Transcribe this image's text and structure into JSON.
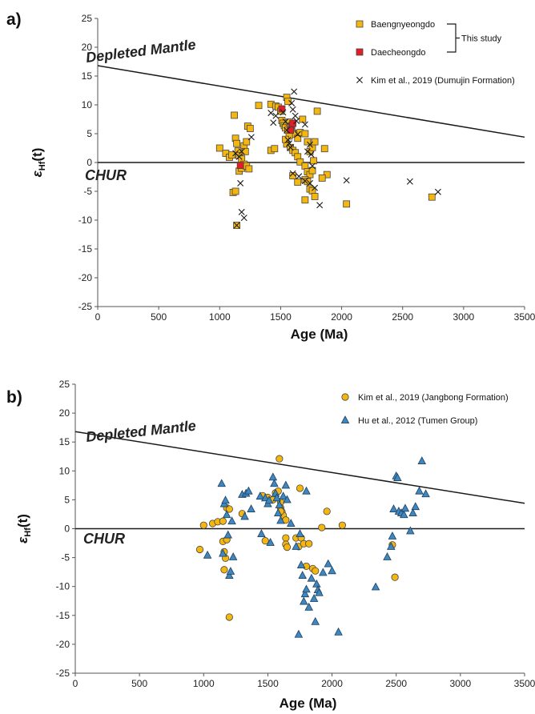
{
  "colors": {
    "baengnyeongdo": "#f5b70f",
    "daecheongdo": "#e21d26",
    "kim_jangbong": "#f5b70f",
    "hu_tumen": "#3f87bf",
    "marker_stroke": "#444444",
    "line": "#1a1a1a"
  },
  "chart_data": [
    {
      "type": "scatter",
      "panel_label": "a)",
      "xlabel": "Age (Ma)",
      "ylabel": "ε",
      "ylabel_sub": "Hf",
      "ylabel_suffix": "(t)",
      "xlim": [
        0,
        3500
      ],
      "ylim": [
        -25,
        25
      ],
      "xticks": [
        "0",
        "500",
        "1000",
        "1500",
        "2000",
        "2500",
        "3000",
        "3500"
      ],
      "yticks": [
        "25",
        "20",
        "15",
        "10",
        "5",
        "0",
        "-5",
        "-10",
        "-15",
        "-20",
        "-25"
      ],
      "reference_lines": [
        {
          "label": "Depleted Mantle",
          "points": [
            [
              0,
              16.8
            ],
            [
              3500,
              4.4
            ]
          ]
        },
        {
          "label": "CHUR",
          "points": [
            [
              0,
              0
            ],
            [
              3500,
              0
            ]
          ]
        }
      ],
      "legend_position": "top-right",
      "legend_bracket_label": "This study",
      "series": [
        {
          "name": "Baengnyeongdo",
          "marker": "square",
          "color_key": "baengnyeongdo",
          "points": [
            [
              1000,
              2.5
            ],
            [
              1050,
              1.6
            ],
            [
              1080,
              0.9
            ],
            [
              1100,
              1.3
            ],
            [
              1120,
              8.2
            ],
            [
              1130,
              4.2
            ],
            [
              1140,
              3.3
            ],
            [
              1150,
              2.0
            ],
            [
              1160,
              1.2
            ],
            [
              1180,
              0.6
            ],
            [
              1200,
              2.9
            ],
            [
              1210,
              1.9
            ],
            [
              1220,
              3.6
            ],
            [
              1230,
              6.3
            ],
            [
              1250,
              5.9
            ],
            [
              1110,
              -5.2
            ],
            [
              1130,
              -5.0
            ],
            [
              1140,
              -10.9
            ],
            [
              1160,
              -1.5
            ],
            [
              1180,
              -1.0
            ],
            [
              1200,
              -0.3
            ],
            [
              1220,
              -0.6
            ],
            [
              1240,
              -1.1
            ],
            [
              1320,
              9.9
            ],
            [
              1420,
              10.1
            ],
            [
              1460,
              9.8
            ],
            [
              1480,
              9.6
            ],
            [
              1500,
              8.9
            ],
            [
              1510,
              7.3
            ],
            [
              1520,
              6.8
            ],
            [
              1530,
              6.4
            ],
            [
              1540,
              6.0
            ],
            [
              1550,
              11.3
            ],
            [
              1560,
              10.6
            ],
            [
              1570,
              7.0
            ],
            [
              1580,
              6.2
            ],
            [
              1590,
              5.6
            ],
            [
              1600,
              5.1
            ],
            [
              1620,
              4.9
            ],
            [
              1640,
              4.2
            ],
            [
              1660,
              5.2
            ],
            [
              1680,
              7.5
            ],
            [
              1700,
              5.0
            ],
            [
              1720,
              3.6
            ],
            [
              1740,
              1.9
            ],
            [
              1760,
              2.6
            ],
            [
              1780,
              3.6
            ],
            [
              1800,
              8.9
            ],
            [
              1420,
              2.1
            ],
            [
              1450,
              2.4
            ],
            [
              1550,
              3.2
            ],
            [
              1580,
              2.6
            ],
            [
              1600,
              2.1
            ],
            [
              1620,
              1.7
            ],
            [
              1640,
              1.0
            ],
            [
              1660,
              0.1
            ],
            [
              1700,
              -0.6
            ],
            [
              1720,
              -1.6
            ],
            [
              1740,
              -2.1
            ],
            [
              1760,
              -1.4
            ],
            [
              1600,
              -2.3
            ],
            [
              1640,
              -3.4
            ],
            [
              1700,
              -3.0
            ],
            [
              1720,
              -3.3
            ],
            [
              1740,
              -4.6
            ],
            [
              1760,
              -4.9
            ],
            [
              1780,
              -5.9
            ],
            [
              1880,
              -2.1
            ],
            [
              1700,
              -6.5
            ],
            [
              1860,
              2.4
            ],
            [
              1840,
              -2.7
            ],
            [
              1770,
              0.3
            ],
            [
              2040,
              -7.2
            ],
            [
              2740,
              -6.0
            ],
            [
              1560,
              5.6
            ],
            [
              1570,
              4.6
            ],
            [
              1540,
              4.0
            ]
          ]
        },
        {
          "name": "Daecheongdo",
          "marker": "square",
          "color_key": "daecheongdo",
          "points": [
            [
              1170,
              -0.5
            ],
            [
              1510,
              9.3
            ],
            [
              1590,
              6.4
            ],
            [
              1600,
              6.8
            ],
            [
              1580,
              5.6
            ]
          ]
        },
        {
          "name": "Kim et al., 2019 (Dumujin Formation)",
          "marker": "x",
          "color_key": "line",
          "points": [
            [
              1130,
              1.6
            ],
            [
              1160,
              1.0
            ],
            [
              1180,
              1.9
            ],
            [
              1260,
              4.4
            ],
            [
              1170,
              -3.6
            ],
            [
              1180,
              -8.6
            ],
            [
              1200,
              -9.6
            ],
            [
              1140,
              -10.9
            ],
            [
              1420,
              8.6
            ],
            [
              1460,
              8.1
            ],
            [
              1440,
              6.9
            ],
            [
              1520,
              8.7
            ],
            [
              1540,
              7.1
            ],
            [
              1550,
              5.6
            ],
            [
              1560,
              3.9
            ],
            [
              1570,
              3.3
            ],
            [
              1580,
              2.6
            ],
            [
              1590,
              10.3
            ],
            [
              1600,
              9.2
            ],
            [
              1610,
              12.3
            ],
            [
              1620,
              8.1
            ],
            [
              1630,
              7.2
            ],
            [
              1640,
              4.9
            ],
            [
              1700,
              6.6
            ],
            [
              1740,
              3.1
            ],
            [
              1750,
              1.4
            ],
            [
              1760,
              -0.6
            ],
            [
              1600,
              -1.9
            ],
            [
              1650,
              -2.4
            ],
            [
              1700,
              -3.2
            ],
            [
              1740,
              -3.6
            ],
            [
              1780,
              -4.4
            ],
            [
              1820,
              -7.4
            ],
            [
              1720,
              1.9
            ],
            [
              2040,
              -3.1
            ],
            [
              2560,
              -3.3
            ],
            [
              2790,
              -5.1
            ]
          ]
        }
      ]
    },
    {
      "type": "scatter",
      "panel_label": "b)",
      "xlabel": "Age (Ma)",
      "ylabel": "ε",
      "ylabel_sub": "Hf",
      "ylabel_suffix": "(t)",
      "xlim": [
        0,
        3500
      ],
      "ylim": [
        -25,
        25
      ],
      "xticks": [
        "0",
        "500",
        "1000",
        "1500",
        "2000",
        "2500",
        "3000",
        "3500"
      ],
      "yticks": [
        "25",
        "20",
        "15",
        "10",
        "5",
        "0",
        "-5",
        "-10",
        "-15",
        "-20",
        "-25"
      ],
      "reference_lines": [
        {
          "label": "Depleted Mantle",
          "points": [
            [
              0,
              16.8
            ],
            [
              3500,
              4.4
            ]
          ]
        },
        {
          "label": "CHUR",
          "points": [
            [
              0,
              0
            ],
            [
              3500,
              0
            ]
          ]
        }
      ],
      "legend_position": "top-right",
      "series": [
        {
          "name": "Kim et al., 2019 (Jangbong Formation)",
          "marker": "circle",
          "color_key": "kim_jangbong",
          "points": [
            [
              970,
              -3.6
            ],
            [
              1000,
              0.6
            ],
            [
              1070,
              0.9
            ],
            [
              1110,
              1.2
            ],
            [
              1150,
              1.3
            ],
            [
              1150,
              -2.2
            ],
            [
              1160,
              -4.0
            ],
            [
              1160,
              -7.1
            ],
            [
              1170,
              -5.1
            ],
            [
              1180,
              -1.9
            ],
            [
              1180,
              3.6
            ],
            [
              1200,
              3.4
            ],
            [
              1200,
              -15.3
            ],
            [
              1300,
              2.6
            ],
            [
              1460,
              5.7
            ],
            [
              1480,
              -2.1
            ],
            [
              1500,
              5.4
            ],
            [
              1540,
              5.0
            ],
            [
              1560,
              6.2
            ],
            [
              1580,
              6.5
            ],
            [
              1590,
              12.1
            ],
            [
              1600,
              4.6
            ],
            [
              1600,
              3.6
            ],
            [
              1610,
              2.9
            ],
            [
              1620,
              2.3
            ],
            [
              1640,
              1.5
            ],
            [
              1640,
              -1.6
            ],
            [
              1640,
              -2.7
            ],
            [
              1650,
              -3.2
            ],
            [
              1720,
              -1.6
            ],
            [
              1740,
              -3.1
            ],
            [
              1750,
              7.0
            ],
            [
              1760,
              -1.6
            ],
            [
              1780,
              -2.6
            ],
            [
              1800,
              -6.5
            ],
            [
              1820,
              -2.6
            ],
            [
              1850,
              -6.9
            ],
            [
              1870,
              -7.3
            ],
            [
              1920,
              0.2
            ],
            [
              1960,
              3.0
            ],
            [
              2080,
              0.6
            ],
            [
              2470,
              -2.8
            ],
            [
              2490,
              -8.4
            ],
            [
              1600,
              3.0
            ]
          ]
        },
        {
          "name": "Hu et al., 2012 (Tumen Group)",
          "marker": "triangle",
          "color_key": "hu_tumen",
          "points": [
            [
              1030,
              -4.6
            ],
            [
              1140,
              7.8
            ],
            [
              1150,
              -4.3
            ],
            [
              1160,
              4.3
            ],
            [
              1170,
              4.9
            ],
            [
              1180,
              2.4
            ],
            [
              1190,
              -1.1
            ],
            [
              1200,
              -8.1
            ],
            [
              1210,
              -7.4
            ],
            [
              1230,
              -4.9
            ],
            [
              1220,
              1.3
            ],
            [
              1300,
              5.9
            ],
            [
              1320,
              2.1
            ],
            [
              1330,
              6.1
            ],
            [
              1350,
              6.5
            ],
            [
              1370,
              3.4
            ],
            [
              1440,
              5.6
            ],
            [
              1450,
              -0.9
            ],
            [
              1480,
              5.3
            ],
            [
              1500,
              4.3
            ],
            [
              1510,
              4.9
            ],
            [
              1520,
              -2.4
            ],
            [
              1540,
              8.9
            ],
            [
              1550,
              7.8
            ],
            [
              1560,
              6.1
            ],
            [
              1570,
              5.3
            ],
            [
              1580,
              2.7
            ],
            [
              1590,
              4.1
            ],
            [
              1600,
              1.4
            ],
            [
              1620,
              5.6
            ],
            [
              1640,
              7.5
            ],
            [
              1650,
              5.0
            ],
            [
              1680,
              0.9
            ],
            [
              1720,
              -3.1
            ],
            [
              1740,
              -18.3
            ],
            [
              1750,
              -0.9
            ],
            [
              1760,
              -6.3
            ],
            [
              1770,
              -8.1
            ],
            [
              1780,
              -12.6
            ],
            [
              1790,
              -11.3
            ],
            [
              1800,
              -10.5
            ],
            [
              1820,
              -13.6
            ],
            [
              1840,
              -8.6
            ],
            [
              1860,
              -12.1
            ],
            [
              1870,
              -16.1
            ],
            [
              1880,
              -9.6
            ],
            [
              1890,
              -10.6
            ],
            [
              1900,
              -11.1
            ],
            [
              1930,
              -7.6
            ],
            [
              1970,
              -6.1
            ],
            [
              2000,
              -7.3
            ],
            [
              2050,
              -17.9
            ],
            [
              2340,
              -10.1
            ],
            [
              2430,
              -4.9
            ],
            [
              2460,
              -3.1
            ],
            [
              2480,
              3.4
            ],
            [
              2500,
              9.1
            ],
            [
              2510,
              8.8
            ],
            [
              2520,
              3.0
            ],
            [
              2540,
              2.7
            ],
            [
              2560,
              2.4
            ],
            [
              2570,
              3.5
            ],
            [
              2610,
              -0.4
            ],
            [
              2630,
              2.7
            ],
            [
              2650,
              3.8
            ],
            [
              2680,
              6.5
            ],
            [
              2700,
              11.7
            ],
            [
              2730,
              6.0
            ],
            [
              1800,
              6.5
            ],
            [
              2470,
              -1.3
            ]
          ]
        }
      ]
    }
  ]
}
